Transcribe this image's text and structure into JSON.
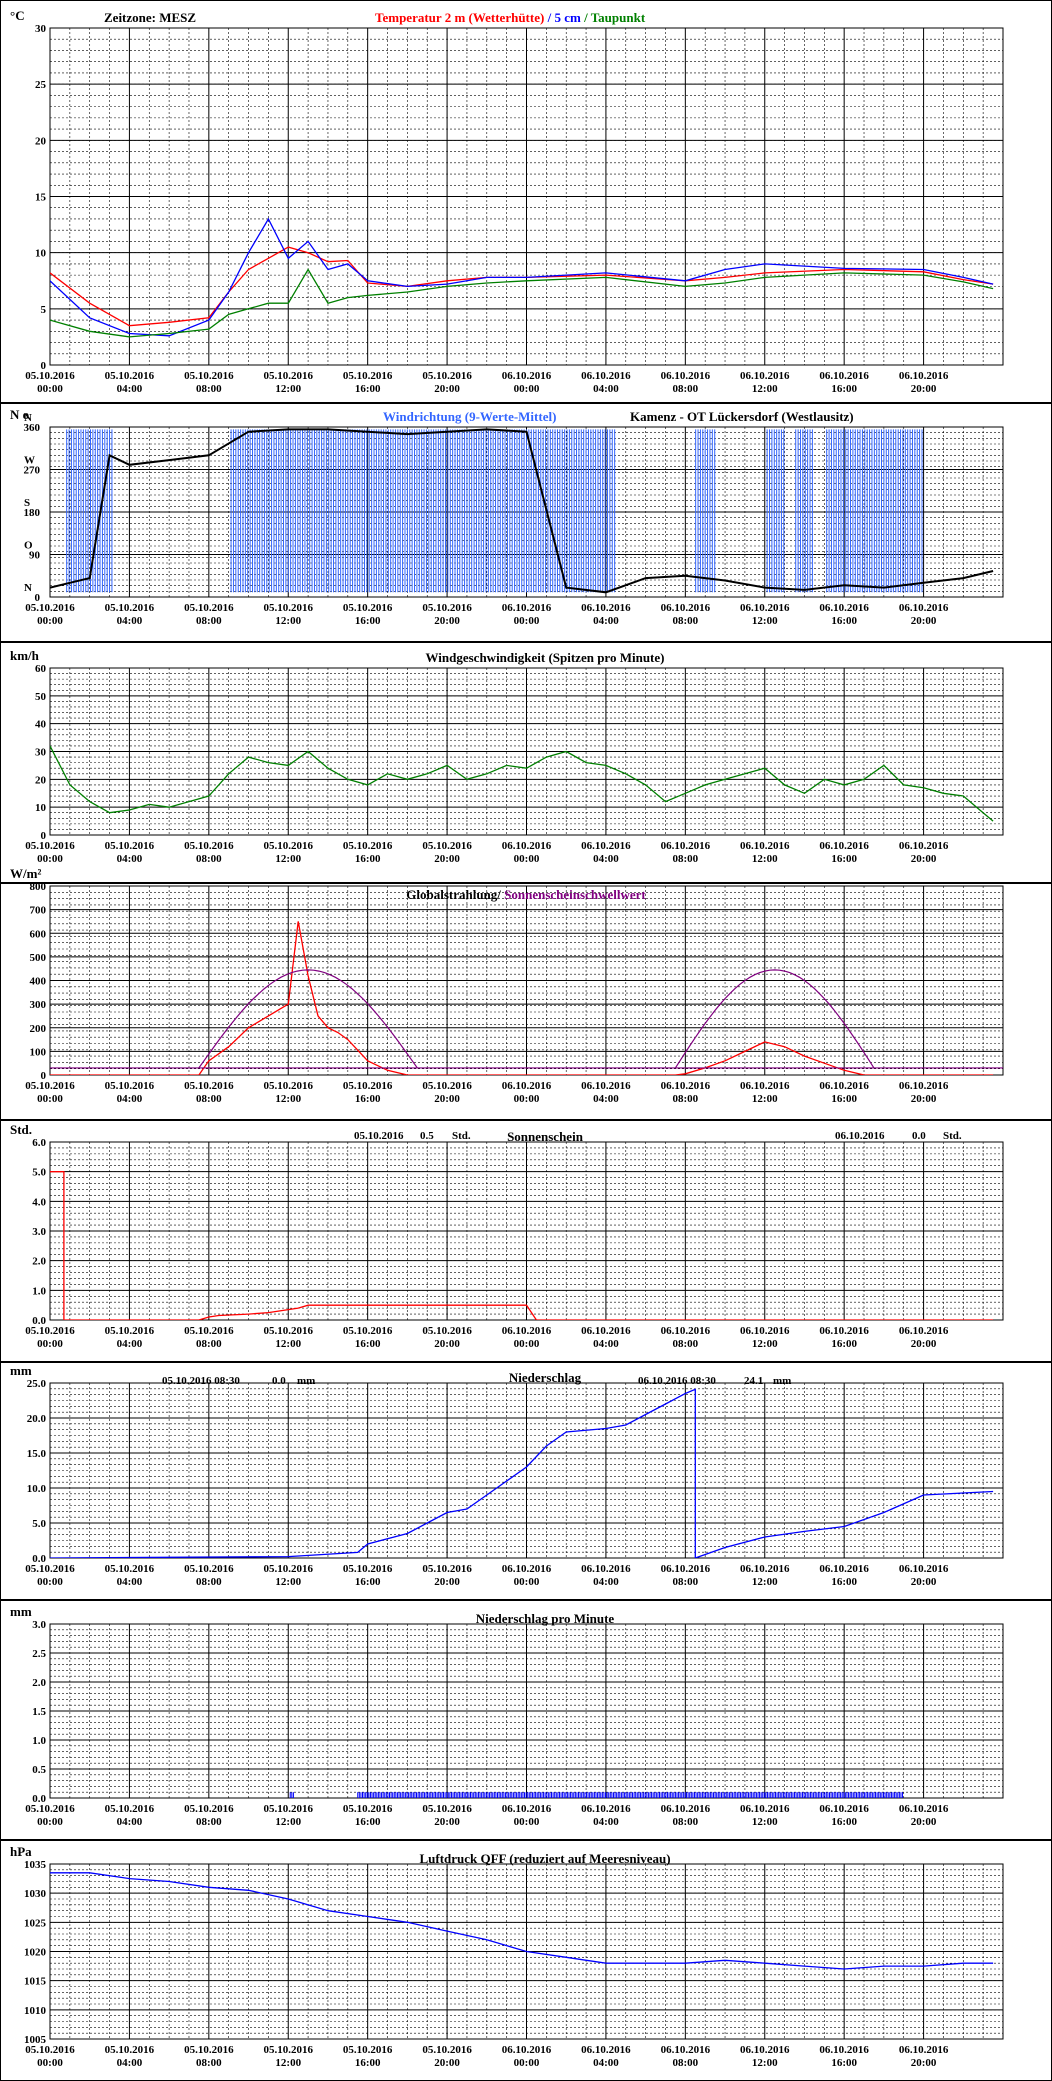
{
  "colors": {
    "red": "#ff0000",
    "blue": "#0000ff",
    "lightblue": "#3366ff",
    "green": "#008000",
    "purple": "#800080",
    "black": "#000000"
  },
  "x_tick_labels": [
    [
      "05.10.2016",
      "00:00"
    ],
    [
      "05.10.2016",
      "04:00"
    ],
    [
      "05.10.2016",
      "08:00"
    ],
    [
      "05.10.2016",
      "12:00"
    ],
    [
      "05.10.2016",
      "16:00"
    ],
    [
      "05.10.2016",
      "20:00"
    ],
    [
      "06.10.2016",
      "00:00"
    ],
    [
      "06.10.2016",
      "04:00"
    ],
    [
      "06.10.2016",
      "08:00"
    ],
    [
      "06.10.2016",
      "12:00"
    ],
    [
      "06.10.2016",
      "16:00"
    ],
    [
      "06.10.2016",
      "20:00"
    ]
  ],
  "chart_data": [
    {
      "type": "line",
      "unit": "°C",
      "timezone_label": "Zeitzone: MESZ",
      "title_parts": [
        {
          "text": "Temperatur 2 m (Wetterhütte)",
          "color": "#ff0000"
        },
        {
          "text": " / ",
          "color": "#0000ff"
        },
        {
          "text": "5 cm",
          "color": "#0000ff"
        },
        {
          "text": " / ",
          "color": "#008000"
        },
        {
          "text": "Taupunkt",
          "color": "#008000"
        }
      ],
      "ylim": [
        0,
        30
      ],
      "yticks": [
        0,
        5,
        10,
        15,
        20,
        25,
        30
      ],
      "x_hours": [
        0,
        2,
        4,
        6,
        8,
        9,
        10,
        11,
        12,
        13,
        14,
        15,
        16,
        18,
        20,
        22,
        24,
        28,
        32,
        34,
        36,
        40,
        44,
        46,
        47.5
      ],
      "series": [
        {
          "name": "Temperatur 2 m (Wetterhütte)",
          "color": "#ff0000",
          "values": [
            8.2,
            5.5,
            3.5,
            3.8,
            4.2,
            6.5,
            8.5,
            9.5,
            10.5,
            10,
            9.2,
            9.3,
            7.3,
            7,
            7.5,
            7.8,
            7.8,
            8,
            7.5,
            7.8,
            8.2,
            8.5,
            8.3,
            7.6,
            7.2
          ]
        },
        {
          "name": "5 cm",
          "color": "#0000ff",
          "values": [
            7.5,
            4.2,
            2.8,
            2.6,
            4,
            6.5,
            10,
            13,
            9.5,
            11,
            8.5,
            9,
            7.5,
            7,
            7.2,
            7.8,
            7.8,
            8.2,
            7.5,
            8.5,
            9,
            8.6,
            8.5,
            7.8,
            7.2
          ]
        },
        {
          "name": "Taupunkt",
          "color": "#008000",
          "values": [
            4,
            3,
            2.5,
            2.8,
            3.2,
            4.5,
            5,
            5.5,
            5.5,
            8.5,
            5.5,
            6,
            6.2,
            6.5,
            7,
            7.3,
            7.5,
            7.8,
            7,
            7.3,
            7.8,
            8.2,
            8,
            7.4,
            6.8
          ]
        }
      ]
    },
    {
      "type": "scatter",
      "unit": "N o",
      "title_parts": [
        {
          "text": "Windrichtung (9-Werte-Mittel)",
          "color": "#3366ff"
        },
        {
          "text": "Kamenz - OT Lückersdorf (Westlausitz)",
          "color": "#000000"
        }
      ],
      "ylim": [
        0,
        360
      ],
      "yticks": [
        0,
        90,
        180,
        270,
        360
      ],
      "direction_labels": [
        {
          "v": 360,
          "t": "N"
        },
        {
          "v": 270,
          "t": "W"
        },
        {
          "v": 180,
          "t": "S"
        },
        {
          "v": 90,
          "t": "O"
        },
        {
          "v": 0,
          "t": "N"
        }
      ],
      "mean_x_hours": [
        0,
        1,
        2,
        3,
        4,
        6,
        8,
        10,
        12,
        14,
        16,
        18,
        20,
        22,
        24,
        26,
        28,
        30,
        32,
        34,
        36,
        38,
        40,
        42,
        44,
        46,
        47.5
      ],
      "mean_values": [
        20,
        30,
        40,
        300,
        280,
        290,
        300,
        350,
        355,
        355,
        350,
        345,
        350,
        355,
        350,
        20,
        10,
        40,
        45,
        35,
        20,
        15,
        25,
        20,
        30,
        40,
        55
      ]
    },
    {
      "type": "line",
      "unit": "km/h",
      "title": "Windgeschwindigkeit (Spitzen pro Minute)",
      "ylim": [
        0,
        60
      ],
      "yticks": [
        0,
        10,
        20,
        30,
        40,
        50,
        60
      ],
      "x_hours": [
        0,
        1,
        2,
        3,
        4,
        5,
        6,
        7,
        8,
        9,
        10,
        11,
        12,
        13,
        14,
        15,
        16,
        17,
        18,
        19,
        20,
        21,
        22,
        23,
        24,
        25,
        26,
        27,
        28,
        29,
        30,
        31,
        32,
        33,
        34,
        35,
        36,
        37,
        38,
        39,
        40,
        41,
        42,
        43,
        44,
        45,
        46,
        47,
        47.5
      ],
      "series": [
        {
          "name": "",
          "color": "#008000",
          "values": [
            32,
            18,
            12,
            8,
            9,
            11,
            10,
            12,
            14,
            22,
            28,
            26,
            25,
            30,
            24,
            20,
            18,
            22,
            20,
            22,
            25,
            20,
            22,
            25,
            24,
            28,
            30,
            26,
            25,
            22,
            18,
            12,
            15,
            18,
            20,
            22,
            24,
            18,
            15,
            20,
            18,
            20,
            25,
            18,
            17,
            15,
            14,
            8,
            5
          ]
        }
      ]
    },
    {
      "type": "line",
      "unit": "W/m²",
      "title_parts": [
        {
          "text": "Globalstrahlung/ ",
          "color": "#000000"
        },
        {
          "text": "Sonnenscheinschwellwert",
          "color": "#800080"
        }
      ],
      "ylim": [
        0,
        800
      ],
      "yticks": [
        0,
        100,
        200,
        300,
        400,
        500,
        600,
        700,
        800
      ],
      "x_hours": [
        0,
        7.5,
        8,
        9,
        10,
        11,
        12,
        12.5,
        13,
        13.5,
        14,
        14.5,
        15,
        16,
        17,
        18,
        31.5,
        32,
        33,
        34,
        35,
        36,
        37,
        38,
        39,
        40,
        41,
        47.5
      ],
      "series": [
        {
          "name": "Globalstrahlung",
          "color": "#ff0000",
          "values": [
            0,
            0,
            60,
            120,
            200,
            250,
            300,
            650,
            420,
            250,
            200,
            180,
            150,
            60,
            20,
            0,
            0,
            5,
            30,
            60,
            100,
            140,
            120,
            80,
            50,
            20,
            0,
            0
          ]
        }
      ],
      "threshold": {
        "name": "Sonnenscheinschwellwert",
        "color": "#800080",
        "base": 30,
        "peak": 445,
        "arcs": [
          {
            "start": 7.5,
            "end": 18.5
          },
          {
            "start": 31.5,
            "end": 41.5
          }
        ]
      }
    },
    {
      "type": "line",
      "unit": "Std.",
      "title": "Sonnenschein",
      "day_summaries": [
        {
          "date": "05.10.2016",
          "value": "0.5",
          "unit": "Std."
        },
        {
          "date": "06.10.2016",
          "value": "0.0",
          "unit": "Std."
        }
      ],
      "ylim": [
        0,
        6
      ],
      "yticks": [
        0,
        1,
        2,
        3,
        4,
        5,
        6
      ],
      "x_hours": [
        0,
        0.7,
        0.7,
        7.5,
        8,
        8.5,
        10,
        11,
        11.5,
        12.5,
        13,
        24,
        24.5,
        47.5
      ],
      "series": [
        {
          "name": "",
          "color": "#ff0000",
          "values": [
            5,
            5,
            0,
            0,
            0.1,
            0.15,
            0.2,
            0.25,
            0.3,
            0.4,
            0.5,
            0.5,
            0,
            0
          ]
        }
      ]
    },
    {
      "type": "line",
      "unit": "mm",
      "title": "Niederschlag",
      "annotations": [
        {
          "date": "05.10.2016 08:30",
          "value": "0.0",
          "unit": "mm"
        },
        {
          "date": "06.10.2016 08:30",
          "value": "24.1",
          "unit": "mm"
        }
      ],
      "ylim": [
        0,
        25
      ],
      "yticks": [
        0,
        5,
        10,
        15,
        20,
        25
      ],
      "x_hours": [
        0,
        12,
        15.5,
        16,
        18,
        19,
        20,
        21,
        22,
        24,
        25,
        26,
        28,
        29,
        30,
        31,
        32,
        32.5,
        32.5,
        33,
        34,
        36,
        38,
        40,
        42,
        44,
        47.5
      ],
      "series": [
        {
          "name": "",
          "color": "#0000ff",
          "values": [
            0,
            0.2,
            0.8,
            2,
            3.5,
            5,
            6.5,
            7,
            9,
            13,
            16,
            18,
            18.5,
            19,
            20.5,
            22,
            23.5,
            24.1,
            0,
            0.5,
            1.5,
            3,
            3.8,
            4.5,
            6.5,
            9,
            9.5
          ]
        }
      ]
    },
    {
      "type": "bar",
      "unit": "mm",
      "title": "Niederschlag pro Minute",
      "ylim": [
        0,
        3
      ],
      "yticks": [
        0,
        0.5,
        1,
        1.5,
        2,
        2.5,
        3
      ],
      "activity_ranges": [
        [
          12.1,
          12.3
        ],
        [
          15.5,
          43
        ]
      ],
      "bar_value": 0.1,
      "color": "#0000ff"
    },
    {
      "type": "line",
      "unit": "hPa",
      "title": "Luftdruck QFF (reduziert auf Meeresniveau)",
      "ylim": [
        1005,
        1035
      ],
      "yticks": [
        1005,
        1010,
        1015,
        1020,
        1025,
        1030,
        1035
      ],
      "x_hours": [
        0,
        2,
        4,
        6,
        8,
        10,
        12,
        14,
        16,
        18,
        20,
        22,
        24,
        26,
        28,
        30,
        32,
        34,
        36,
        38,
        40,
        42,
        44,
        46,
        47.5
      ],
      "series": [
        {
          "name": "",
          "color": "#0000ff",
          "values": [
            1033.5,
            1033.5,
            1032.5,
            1032,
            1031,
            1030.5,
            1029,
            1027,
            1026,
            1025,
            1023.5,
            1022,
            1020,
            1019,
            1018,
            1018,
            1018,
            1018.5,
            1018,
            1017.5,
            1017,
            1017.5,
            1017.5,
            1018,
            1018
          ]
        }
      ]
    }
  ]
}
